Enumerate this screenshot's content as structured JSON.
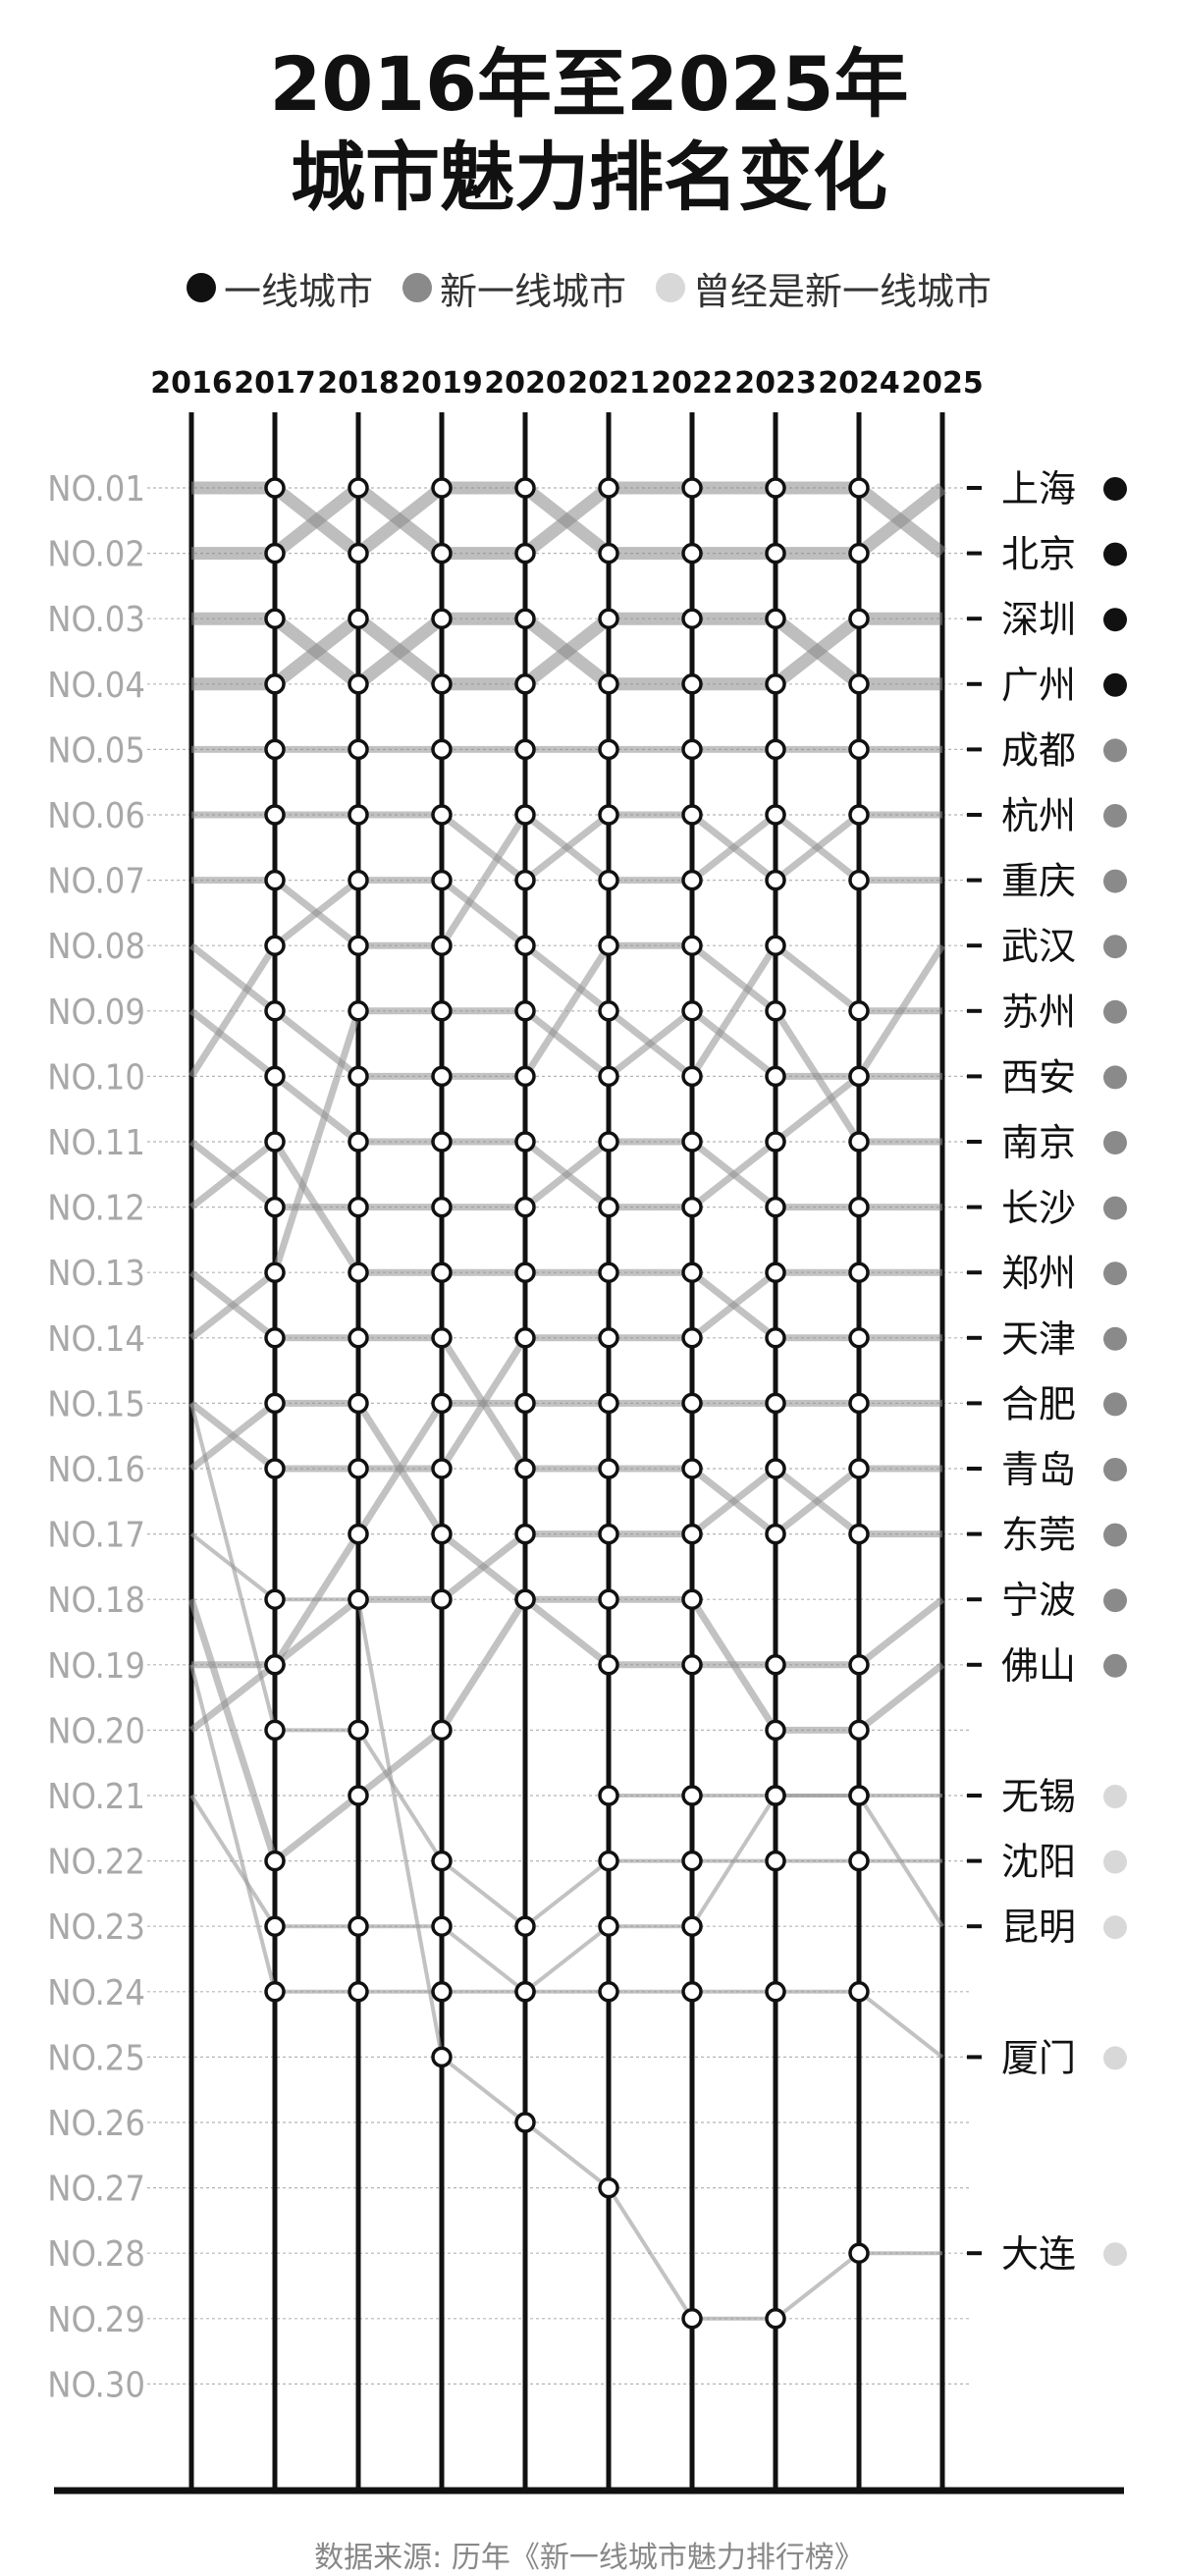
{
  "title_line1": "2016年至2025年",
  "title_line2": "城市魅力排名变化",
  "legend": [
    {
      "label": "一线城市",
      "color": "#111111"
    },
    {
      "label": "新一线城市",
      "color": "#8a8a8a"
    },
    {
      "label": "曾经是新一线城市",
      "color": "#d8d8d8"
    }
  ],
  "source": "数据来源: 历年《新一线城市魅力排行榜》",
  "chart_data": {
    "type": "line",
    "years": [
      "2016",
      "2017",
      "2018",
      "2019",
      "2020",
      "2021",
      "2022",
      "2023",
      "2024",
      "2025"
    ],
    "ranks": [
      "NO.01",
      "NO.02",
      "NO.03",
      "NO.04",
      "NO.05",
      "NO.06",
      "NO.07",
      "NO.08",
      "NO.09",
      "NO.10",
      "NO.11",
      "NO.12",
      "NO.13",
      "NO.14",
      "NO.15",
      "NO.16",
      "NO.17",
      "NO.18",
      "NO.19",
      "NO.20",
      "NO.21",
      "NO.22",
      "NO.23",
      "NO.24",
      "NO.25",
      "NO.26",
      "NO.27",
      "NO.28",
      "NO.29",
      "NO.30"
    ],
    "series": [
      {
        "name": "上海",
        "tier": "一线城市",
        "values": [
          1,
          1,
          2,
          1,
          1,
          2,
          2,
          2,
          2,
          1
        ]
      },
      {
        "name": "北京",
        "tier": "一线城市",
        "values": [
          2,
          2,
          1,
          2,
          2,
          1,
          1,
          1,
          1,
          2
        ]
      },
      {
        "name": "深圳",
        "tier": "一线城市",
        "values": [
          3,
          3,
          4,
          3,
          3,
          4,
          4,
          4,
          3,
          3
        ]
      },
      {
        "name": "广州",
        "tier": "一线城市",
        "values": [
          4,
          4,
          3,
          4,
          4,
          3,
          3,
          3,
          4,
          4
        ]
      },
      {
        "name": "成都",
        "tier": "新一线城市",
        "values": [
          5,
          5,
          5,
          5,
          5,
          5,
          5,
          5,
          5,
          5
        ]
      },
      {
        "name": "杭州",
        "tier": "新一线城市",
        "values": [
          6,
          6,
          6,
          6,
          7,
          6,
          6,
          7,
          6,
          6
        ]
      },
      {
        "name": "重庆",
        "tier": "新一线城市",
        "values": [
          7,
          7,
          8,
          8,
          6,
          7,
          7,
          6,
          7,
          7
        ]
      },
      {
        "name": "武汉",
        "tier": "新一线城市",
        "values": [
          9,
          10,
          11,
          11,
          11,
          12,
          12,
          11,
          10,
          8
        ]
      },
      {
        "name": "苏州",
        "tier": "新一线城市",
        "values": [
          10,
          8,
          7,
          7,
          8,
          9,
          10,
          8,
          9,
          9
        ]
      },
      {
        "name": "西安",
        "tier": "新一线城市",
        "values": [
          14,
          13,
          9,
          9,
          9,
          10,
          9,
          10,
          10,
          10
        ]
      },
      {
        "name": "南京",
        "tier": "新一线城市",
        "values": [
          8,
          9,
          10,
          10,
          10,
          8,
          8,
          9,
          11,
          11
        ]
      },
      {
        "name": "长沙",
        "tier": "新一线城市",
        "values": [
          11,
          12,
          12,
          12,
          12,
          11,
          11,
          12,
          12,
          12
        ]
      },
      {
        "name": "郑州",
        "tier": "新一线城市",
        "values": [
          15,
          16,
          16,
          16,
          14,
          14,
          14,
          13,
          13,
          13
        ]
      },
      {
        "name": "天津",
        "tier": "新一线城市",
        "values": [
          12,
          11,
          13,
          13,
          13,
          13,
          13,
          14,
          14,
          14
        ]
      },
      {
        "name": "合肥",
        "tier": "新一线城市",
        "values": [
          19,
          19,
          17,
          15,
          15,
          15,
          15,
          15,
          15,
          15
        ]
      },
      {
        "name": "青岛",
        "tier": "新一线城市",
        "values": [
          13,
          14,
          14,
          14,
          16,
          16,
          16,
          17,
          16,
          16
        ]
      },
      {
        "name": "东莞",
        "tier": "新一线城市",
        "values": [
          20,
          19,
          18,
          18,
          17,
          17,
          17,
          16,
          17,
          17
        ]
      },
      {
        "name": "宁波",
        "tier": "新一线城市",
        "values": [
          16,
          15,
          15,
          17,
          18,
          19,
          19,
          19,
          19,
          18
        ]
      },
      {
        "name": "佛山",
        "tier": "新一线城市",
        "values": [
          18,
          22,
          21,
          20,
          18,
          18,
          18,
          20,
          20,
          19
        ]
      },
      {
        "name": "无锡",
        "tier": "曾经是新一线城市",
        "values": [
          null,
          null,
          null,
          null,
          null,
          21,
          21,
          21,
          21,
          21
        ]
      },
      {
        "name": "沈阳",
        "tier": "曾经是新一线城市",
        "values": [
          15,
          20,
          20,
          22,
          23,
          22,
          22,
          22,
          22,
          22
        ]
      },
      {
        "name": "昆明",
        "tier": "曾经是新一线城市",
        "values": [
          19,
          24,
          24,
          24,
          24,
          23,
          23,
          21,
          21,
          23
        ]
      },
      {
        "name": "厦门",
        "tier": "曾经是新一线城市",
        "values": [
          21,
          23,
          23,
          23,
          24,
          24,
          24,
          24,
          24,
          25
        ]
      },
      {
        "name": "大连",
        "tier": "曾经是新一线城市",
        "values": [
          17,
          18,
          18,
          25,
          26,
          27,
          29,
          29,
          28,
          28
        ]
      }
    ]
  }
}
